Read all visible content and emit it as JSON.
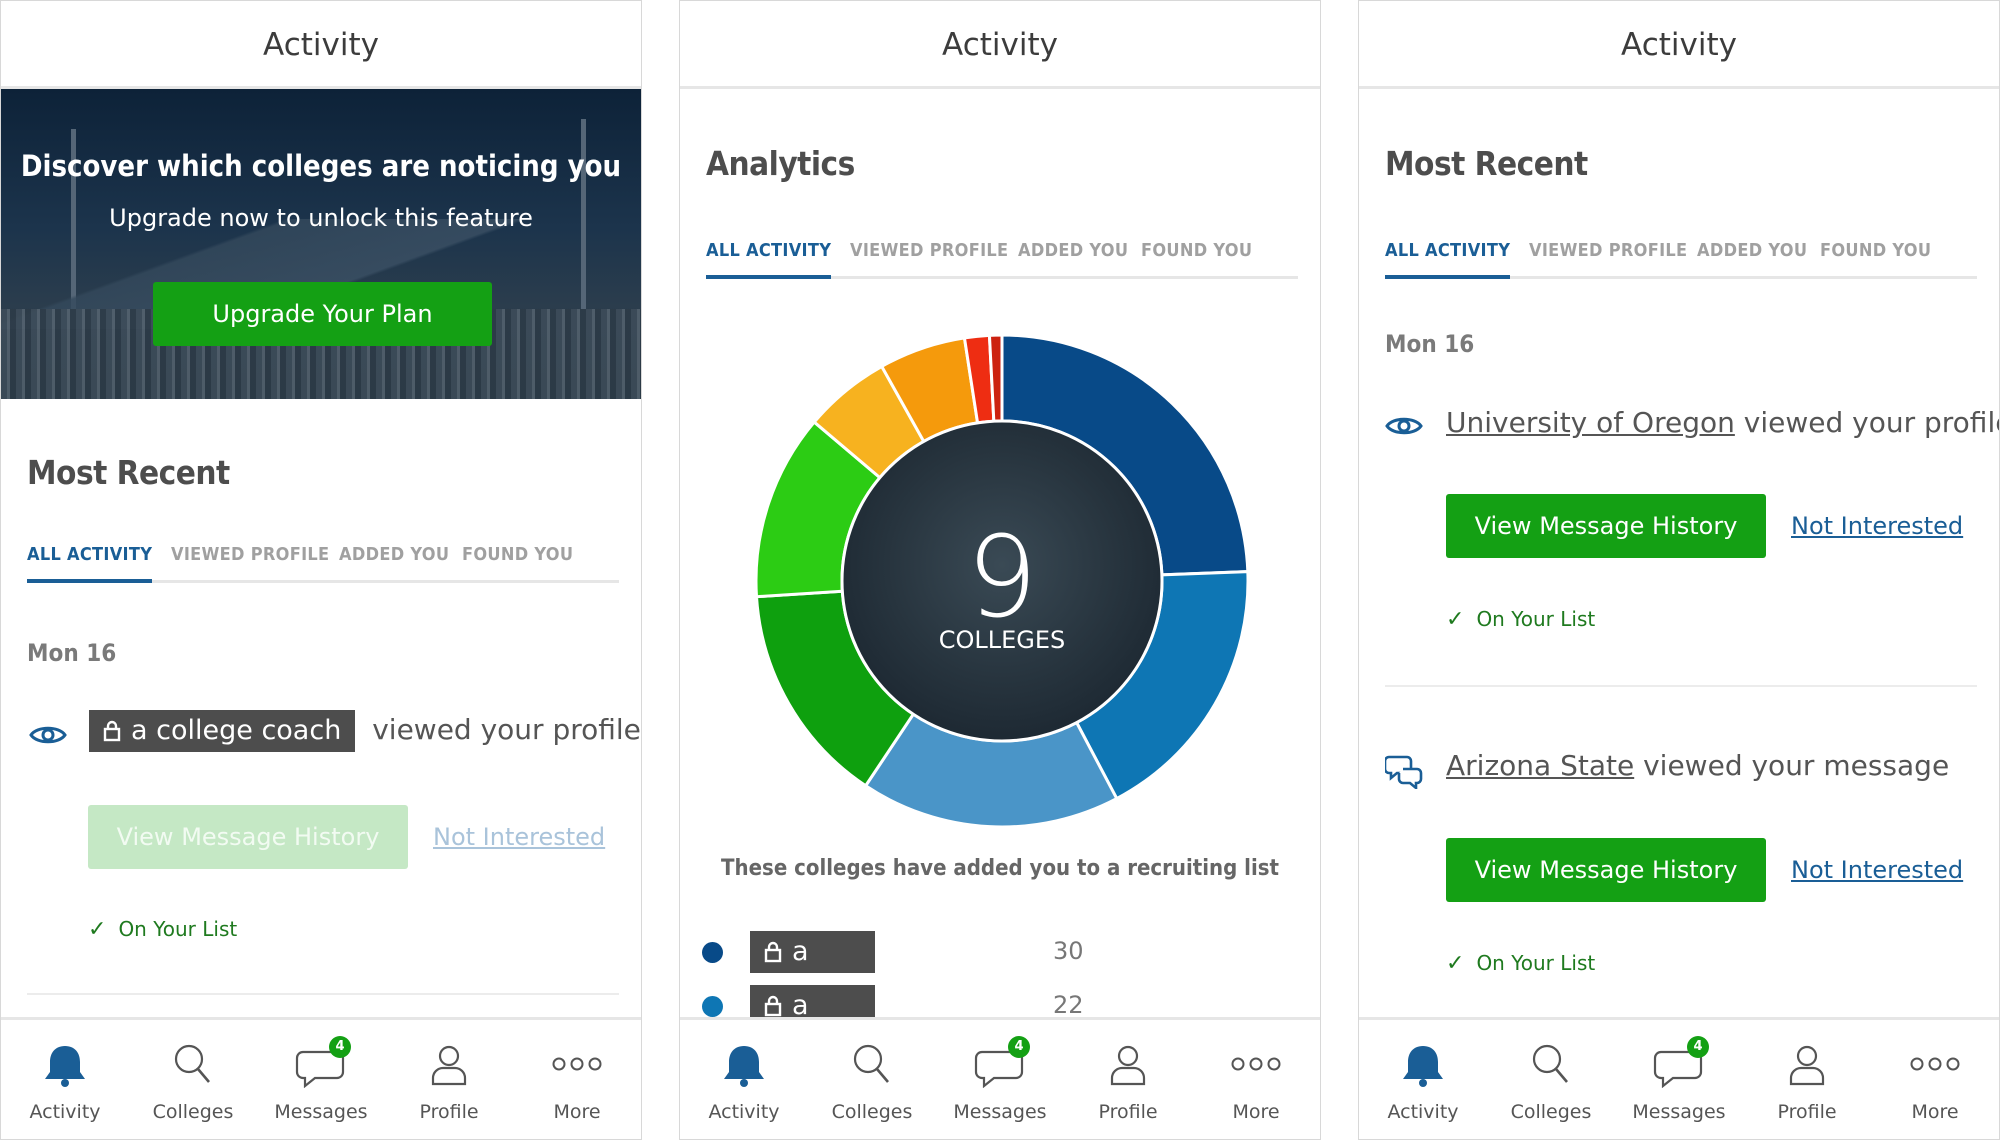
{
  "colors": {
    "accent": "#1a5e96",
    "green": "#14a014",
    "nav_active": "#1a5e96"
  },
  "screens": [
    {
      "header": "Activity",
      "banner": {
        "title": "Discover which colleges are noticing you",
        "subtitle": "Upgrade now to unlock this feature",
        "button": "Upgrade Your Plan"
      },
      "section_title": "Most Recent",
      "tabs": [
        "ALL ACTIVITY",
        "VIEWED PROFILE",
        "ADDED YOU",
        "FOUND YOU"
      ],
      "date": "Mon 16",
      "activity": {
        "icon": "eye-icon",
        "actor": "a college coach",
        "text": "viewed your profile",
        "button": "View Message History",
        "link": "Not Interested",
        "status": "On Your List"
      }
    },
    {
      "header": "Activity",
      "section_title": "Analytics",
      "tabs": [
        "ALL ACTIVITY",
        "VIEWED PROFILE",
        "ADDED YOU",
        "FOUND YOU"
      ],
      "center_number": "9",
      "center_label": "COLLEGES",
      "caption": "These colleges have added you to a recruiting list",
      "legend": [
        {
          "label": "a college coach",
          "count": "30",
          "color": "#084a88"
        },
        {
          "label": "a college coach",
          "count": "22",
          "color": "#0e76b4"
        }
      ]
    },
    {
      "header": "Activity",
      "section_title": "Most Recent",
      "tabs": [
        "ALL ACTIVITY",
        "VIEWED PROFILE",
        "ADDED YOU",
        "FOUND YOU"
      ],
      "date": "Mon 16",
      "activities": [
        {
          "icon": "eye-icon",
          "school": "University of Oregon",
          "text": "viewed your profile",
          "button": "View Message History",
          "link": "Not Interested",
          "status": "On Your List"
        },
        {
          "icon": "chat-icon",
          "school": "Arizona State",
          "text": "viewed your message",
          "button": "View Message History",
          "link": "Not Interested",
          "status": "On Your List"
        }
      ]
    }
  ],
  "nav": {
    "items": [
      "Activity",
      "Colleges",
      "Messages",
      "Profile",
      "More"
    ],
    "badge": "4"
  },
  "chart_data": {
    "type": "pie",
    "title": "Analytics",
    "center_value": 9,
    "center_label": "COLLEGES",
    "slices": [
      {
        "value": 30,
        "color": "#084a88"
      },
      {
        "value": 22,
        "color": "#0e76b4"
      },
      {
        "value": 21,
        "color": "#4a95c8"
      },
      {
        "value": 18,
        "color": "#0ea00e"
      },
      {
        "value": 15,
        "color": "#2ccc14"
      },
      {
        "value": 7,
        "color": "#f7b21f"
      },
      {
        "value": 7,
        "color": "#f59a0c"
      },
      {
        "value": 2,
        "color": "#ee2d12"
      },
      {
        "value": 1,
        "color": "#cc2210"
      }
    ]
  }
}
